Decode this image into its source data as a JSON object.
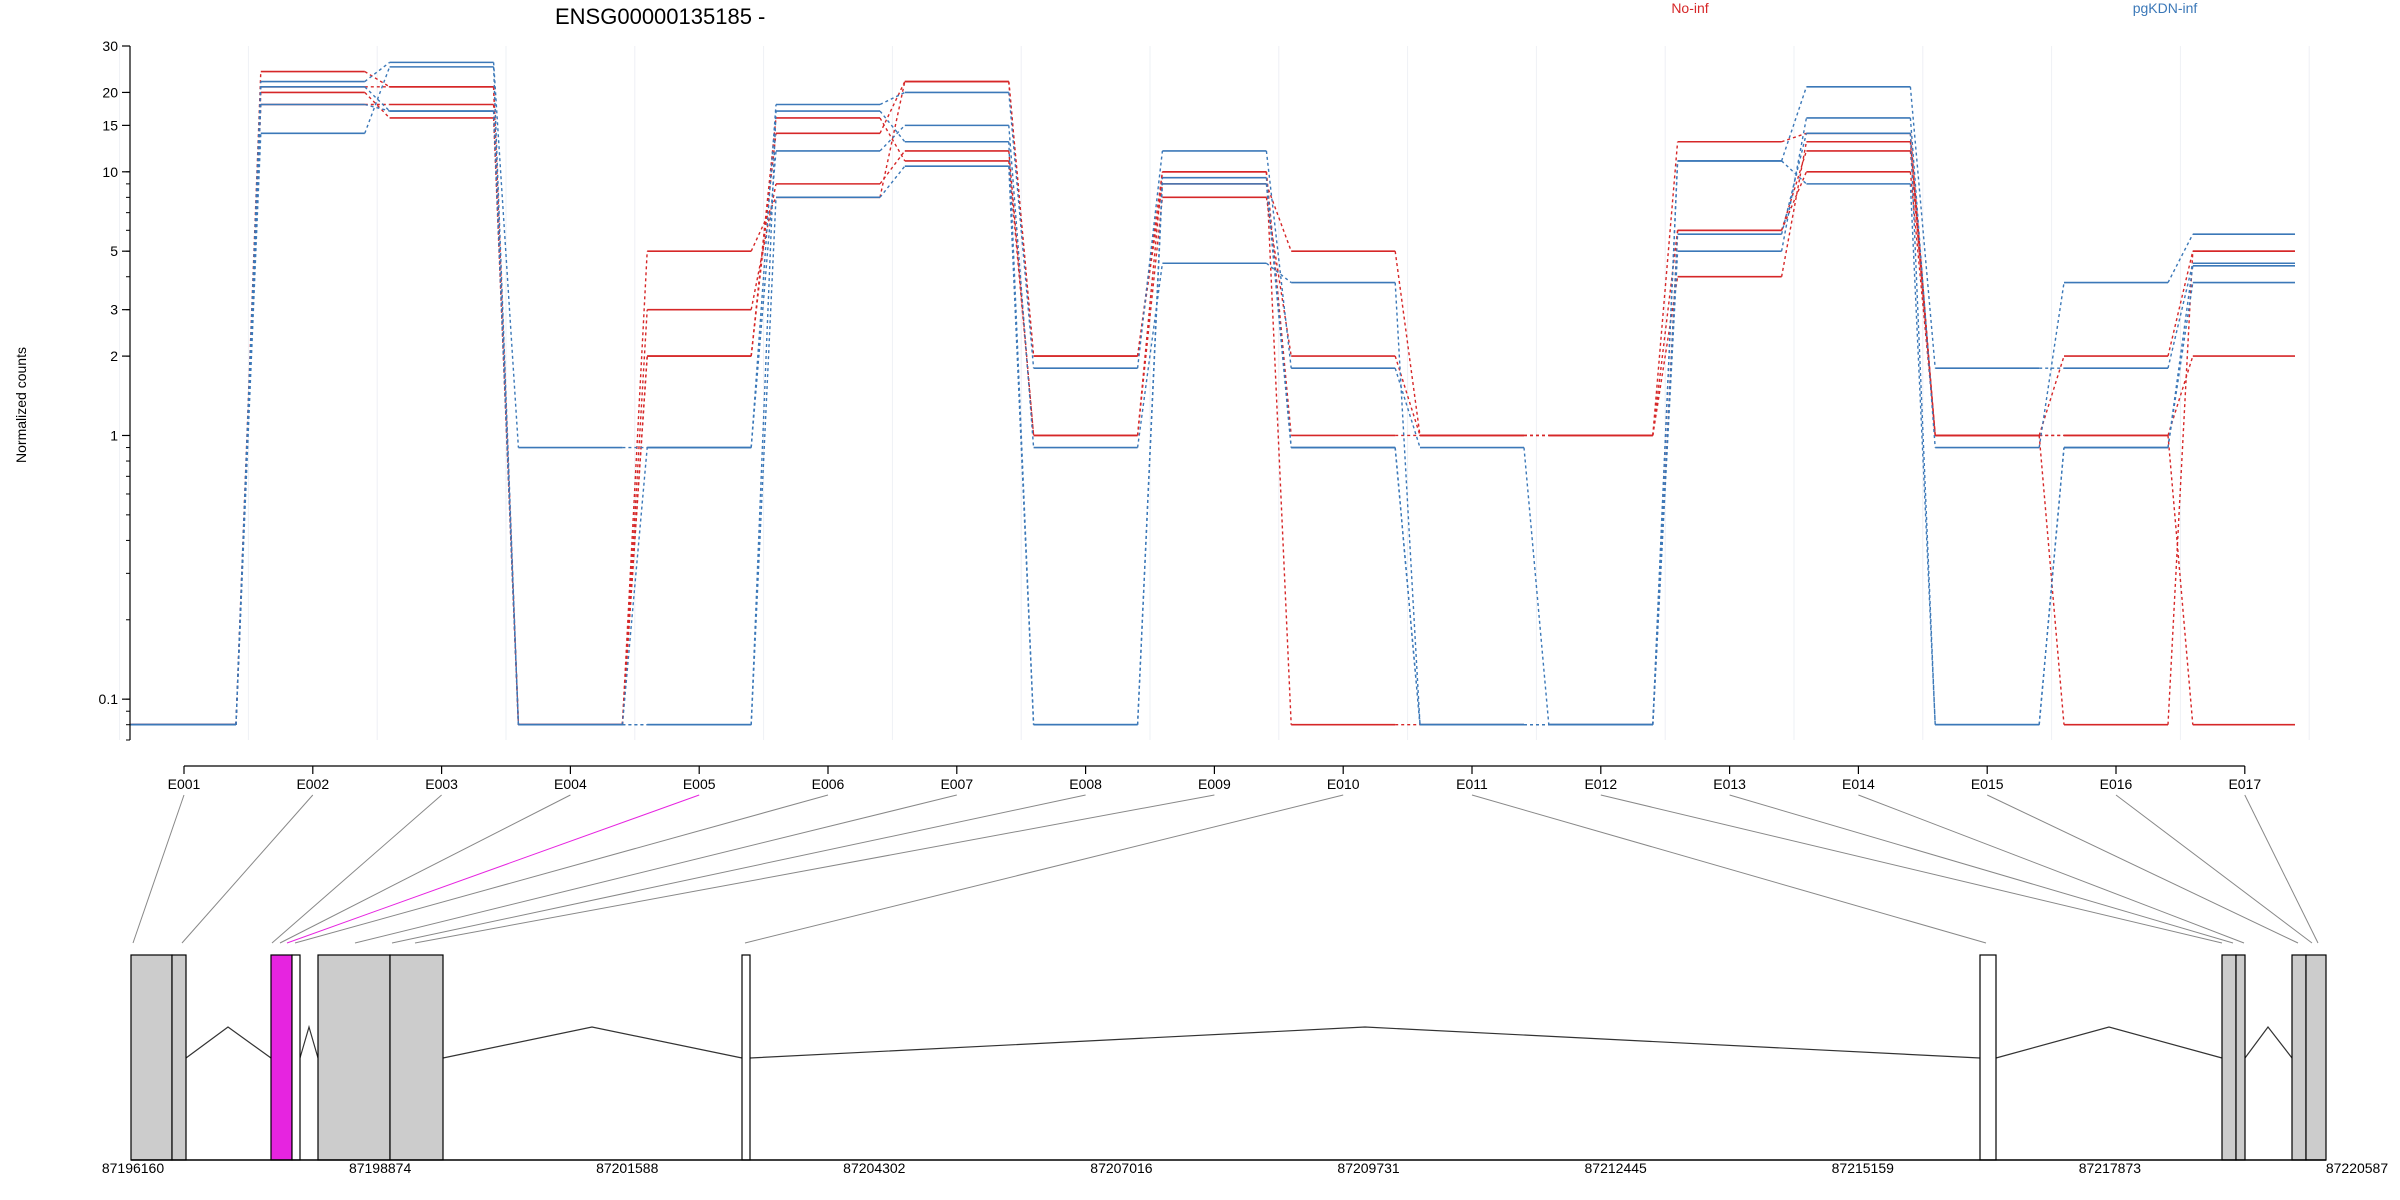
{
  "chart_data": {
    "type": "line",
    "title": "ENSG00000135185 -",
    "ylabel": "Normalized counts",
    "yscale": "log",
    "ylim": [
      0.07,
      30
    ],
    "yticks": [
      0.1,
      1,
      2,
      3,
      5,
      10,
      15,
      20,
      30
    ],
    "grid": true,
    "legend_position": "top",
    "colors": {
      "No-inf": "#d62728",
      "pgKDN-inf": "#3b78b8",
      "highlight": "#e624e0"
    },
    "legend": [
      {
        "name": "No-inf",
        "color": "#d62728"
      },
      {
        "name": "pgKDN-inf",
        "color": "#3b78b8"
      }
    ],
    "exons": [
      "E001",
      "E002",
      "E003",
      "E004",
      "E005",
      "E006",
      "E007",
      "E008",
      "E009",
      "E010",
      "E011",
      "E012",
      "E013",
      "E014",
      "E015",
      "E016",
      "E017"
    ],
    "series": [
      {
        "name": "No-inf",
        "values": [
          0.08,
          24,
          21,
          0.08,
          5,
          8,
          22,
          2,
          9,
          5,
          1,
          1,
          13,
          14,
          1,
          2,
          5
        ]
      },
      {
        "name": "No-inf",
        "values": [
          0.08,
          18,
          18,
          0.08,
          3,
          9,
          12,
          1,
          8,
          2,
          1,
          1,
          6,
          12,
          1,
          1,
          2
        ]
      },
      {
        "name": "No-inf",
        "values": [
          0.08,
          21,
          21,
          0.08,
          2,
          16,
          11,
          1,
          10,
          1,
          1,
          1,
          4,
          13,
          1,
          1,
          0.08
        ]
      },
      {
        "name": "No-inf",
        "values": [
          0.08,
          20,
          16,
          0.08,
          2,
          14,
          22,
          2,
          10,
          0.08,
          0.08,
          0.08,
          6,
          10,
          1,
          0.08,
          5
        ]
      },
      {
        "name": "pgKDN-inf",
        "values": [
          0.08,
          22,
          26,
          0.9,
          0.9,
          18,
          20,
          1.8,
          12,
          1.8,
          0.9,
          0.08,
          11,
          21,
          1.8,
          1.8,
          4.5
        ]
      },
      {
        "name": "pgKDN-inf",
        "values": [
          0.08,
          14,
          25,
          0.08,
          0.9,
          12,
          15,
          0.9,
          4.5,
          3.8,
          0.08,
          0.08,
          5,
          16,
          0.9,
          3.8,
          5.8
        ]
      },
      {
        "name": "pgKDN-inf",
        "values": [
          0.08,
          18,
          17,
          0.08,
          0.08,
          17,
          13,
          0.08,
          9.5,
          0.9,
          0.08,
          0.08,
          5.8,
          14,
          0.08,
          0.9,
          4.4
        ]
      },
      {
        "name": "pgKDN-inf",
        "values": [
          0.08,
          21,
          17,
          0.08,
          0.08,
          8,
          10.5,
          0.08,
          9,
          0.9,
          0.08,
          0.08,
          11,
          9,
          0.08,
          0.9,
          3.8
        ]
      }
    ],
    "gene_model": {
      "coord_ticks": [
        "87196160",
        "87198874",
        "87201588",
        "87204302",
        "87207016",
        "87209731",
        "87212445",
        "87215159",
        "87217873",
        "87220587"
      ],
      "highlighted_exon": "E005"
    }
  }
}
